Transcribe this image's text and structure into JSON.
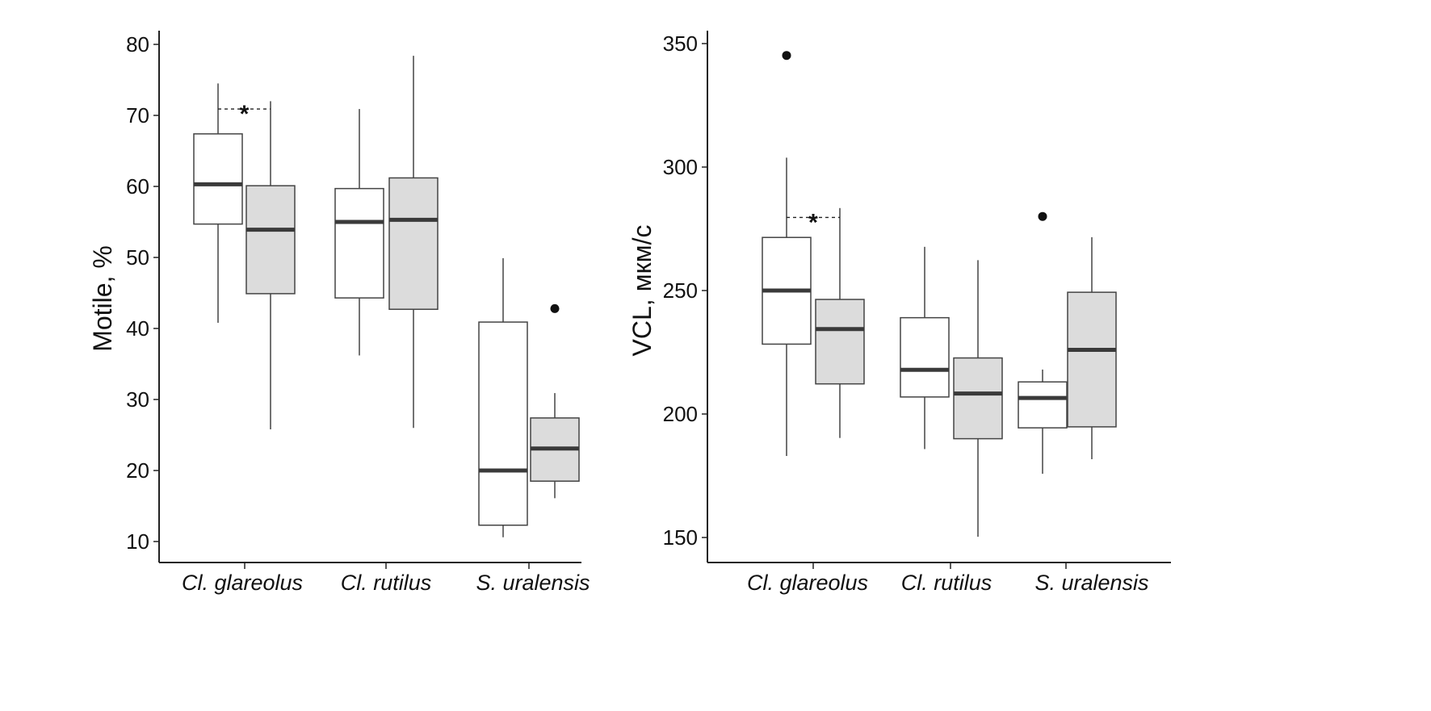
{
  "chart_data": [
    {
      "type": "box",
      "ylabel": "Motile, %",
      "ylim": [
        8,
        82
      ],
      "yticks": [
        10,
        20,
        30,
        40,
        50,
        60,
        70,
        80
      ],
      "categories": [
        "Cl. glareolus",
        "Cl. rutilus",
        "S. uralensis"
      ],
      "series": [
        {
          "fill": "#ffffff",
          "boxes": [
            {
              "whislo": 40.8,
              "q1": 54.7,
              "med": 60.3,
              "q3": 67.4,
              "whishi": 74.5,
              "outliers": []
            },
            {
              "whislo": 36.2,
              "q1": 44.3,
              "med": 55.0,
              "q3": 59.7,
              "whishi": 70.9,
              "outliers": []
            },
            {
              "whislo": 10.6,
              "q1": 12.3,
              "med": 20.0,
              "q3": 40.9,
              "whishi": 49.9,
              "outliers": []
            }
          ]
        },
        {
          "fill": "#dcdcdc",
          "boxes": [
            {
              "whislo": 25.8,
              "q1": 44.9,
              "med": 53.9,
              "q3": 60.1,
              "whishi": 72.0,
              "outliers": []
            },
            {
              "whislo": 26.0,
              "q1": 42.7,
              "med": 55.3,
              "q3": 61.2,
              "whishi": 78.4,
              "outliers": []
            },
            {
              "whislo": 16.1,
              "q1": 18.5,
              "med": 23.1,
              "q3": 27.4,
              "whishi": 30.9,
              "outliers": [
                42.8
              ]
            }
          ]
        }
      ],
      "significance": [
        {
          "category": 0,
          "y": 70.9,
          "label": "*"
        }
      ]
    },
    {
      "type": "box",
      "ylabel": "VCL, мкм/с",
      "ylim": [
        140,
        356
      ],
      "yticks": [
        150,
        200,
        250,
        300,
        350
      ],
      "categories": [
        "Cl. glareolus",
        "Cl. rutilus",
        "S. uralensis"
      ],
      "series": [
        {
          "fill": "#ffffff",
          "boxes": [
            {
              "whislo": 183.0,
              "q1": 228.3,
              "med": 250.0,
              "q3": 271.5,
              "whishi": 303.8,
              "outliers": [
                345.2
              ]
            },
            {
              "whislo": 185.8,
              "q1": 206.9,
              "med": 217.9,
              "q3": 239.0,
              "whishi": 267.7,
              "outliers": []
            },
            {
              "whislo": 175.8,
              "q1": 194.4,
              "med": 206.5,
              "q3": 213.0,
              "whishi": 218.0,
              "outliers": [
                280.0
              ]
            }
          ]
        },
        {
          "fill": "#dcdcdc",
          "boxes": [
            {
              "whislo": 190.3,
              "q1": 212.2,
              "med": 234.4,
              "q3": 246.4,
              "whishi": 283.4,
              "outliers": []
            },
            {
              "whislo": 150.3,
              "q1": 190.0,
              "med": 208.3,
              "q3": 222.7,
              "whishi": 262.3,
              "outliers": []
            },
            {
              "whislo": 181.7,
              "q1": 194.8,
              "med": 226.0,
              "q3": 249.3,
              "whishi": 271.6,
              "outliers": []
            }
          ]
        }
      ],
      "significance": [
        {
          "category": 0,
          "y": 279.6,
          "label": "*"
        }
      ]
    }
  ]
}
